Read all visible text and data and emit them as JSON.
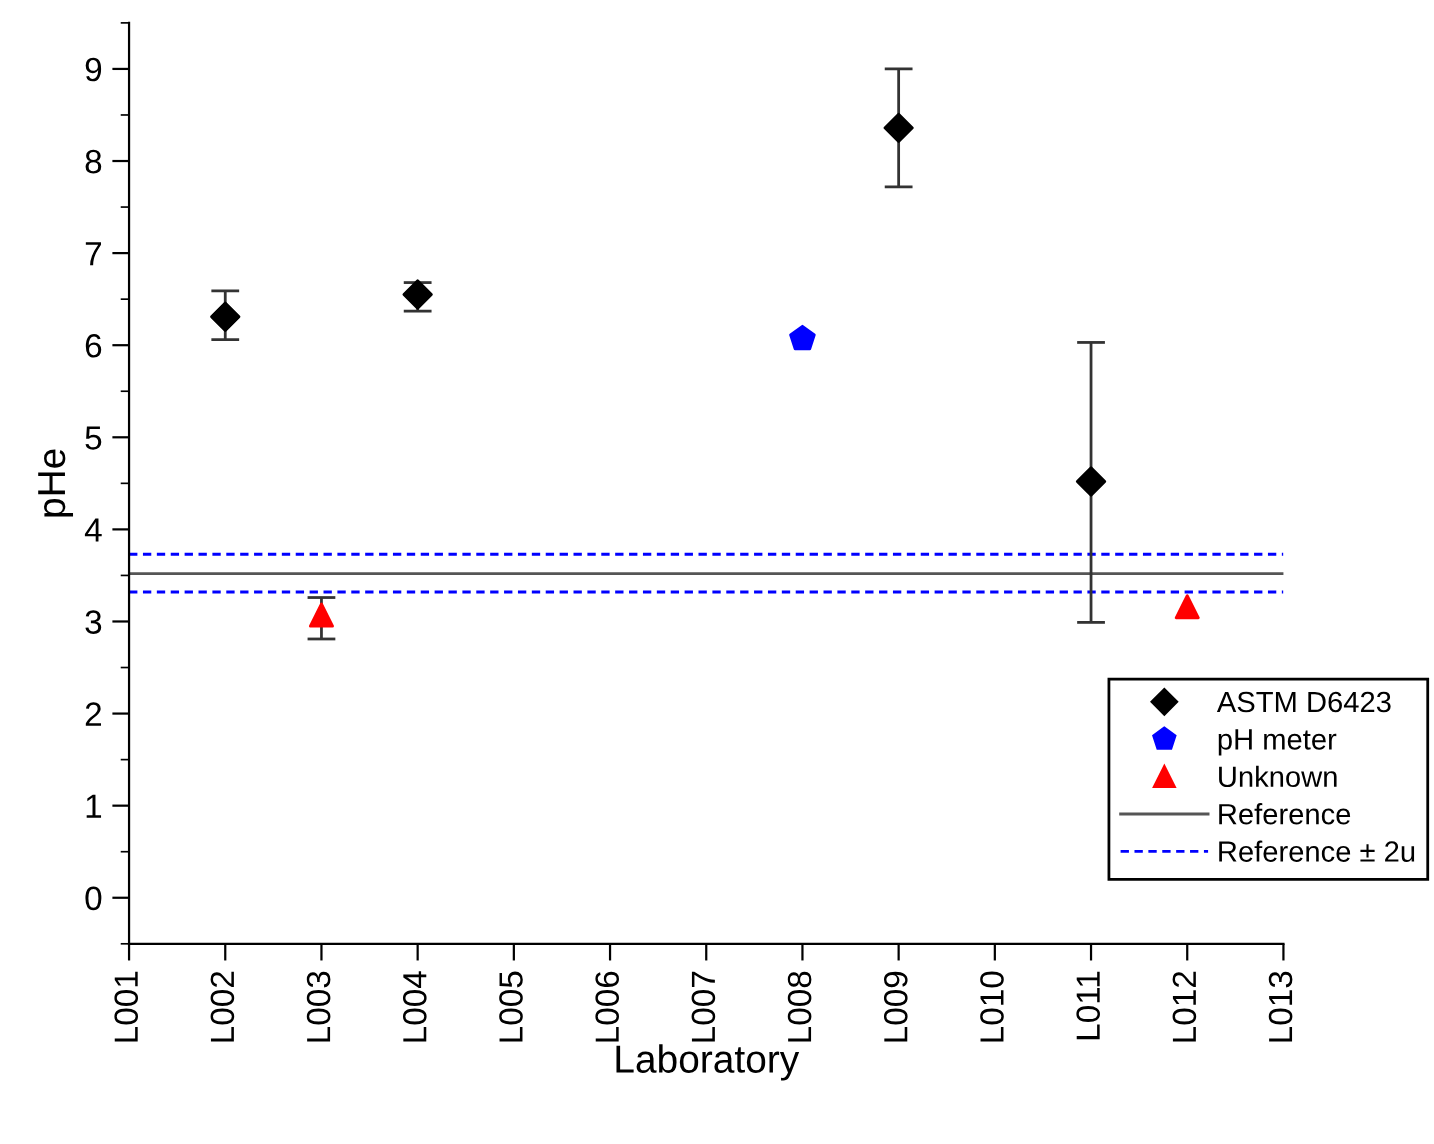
{
  "chart_data": {
    "type": "scatter",
    "xlabel": "Laboratory",
    "ylabel": "pHe",
    "categories": [
      "L001",
      "L002",
      "L003",
      "L004",
      "L005",
      "L006",
      "L007",
      "L008",
      "L009",
      "L010",
      "L011",
      "L012",
      "L013"
    ],
    "series": [
      {
        "name": "ASTM D6423",
        "color": "#000000",
        "marker": "diamond",
        "values": [
          null,
          6.31,
          null,
          6.55,
          null,
          null,
          null,
          null,
          8.36,
          null,
          4.52,
          null,
          null
        ],
        "errors": [
          null,
          [
            6.06,
            6.59
          ],
          null,
          [
            6.37,
            6.68
          ],
          null,
          null,
          null,
          null,
          [
            7.72,
            9.0
          ],
          null,
          [
            2.99,
            6.03
          ],
          null,
          null
        ]
      },
      {
        "name": "pH meter",
        "color": "#0000ff",
        "values": [
          null,
          null,
          null,
          null,
          null,
          null,
          null,
          6.07,
          null,
          null,
          null,
          null,
          null
        ]
      },
      {
        "name": "Unknown",
        "color": "#ff0000",
        "marker": "triangle",
        "values": [
          null,
          null,
          3.07,
          null,
          null,
          null,
          null,
          null,
          null,
          null,
          null,
          3.16,
          null
        ],
        "errors": [
          null,
          null,
          [
            2.81,
            3.26
          ],
          null,
          null,
          null,
          null,
          null,
          null,
          null,
          null,
          null,
          null
        ]
      }
    ],
    "ref_lines": [
      {
        "axis": "y",
        "value": 3.52,
        "label": "Reference",
        "color": "#555555",
        "line_style": "solid"
      },
      {
        "axis": "y",
        "value": 3.73,
        "label": "Reference ± 2u",
        "color": "#0000ff",
        "line_style": "dashed"
      },
      {
        "axis": "y",
        "value": 3.32,
        "color": "#0000ff",
        "line_style": "dashed"
      }
    ],
    "ylim": [
      -0.5,
      9.5
    ],
    "yticks": [
      0,
      1,
      2,
      3,
      4,
      5,
      6,
      7,
      8,
      9
    ],
    "grid": false,
    "legend": "bottom right"
  }
}
